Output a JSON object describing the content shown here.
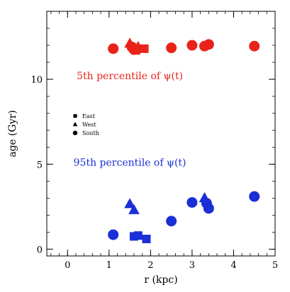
{
  "chart_data": {
    "type": "scatter",
    "xlabel": "r (kpc)",
    "ylabel": "age (Gyr)",
    "xlim": [
      -0.5,
      5.0
    ],
    "ylim": [
      -0.4,
      14.0
    ],
    "x_ticks": [
      0,
      1,
      2,
      3,
      4,
      5
    ],
    "y_ticks": [
      0,
      5,
      10
    ],
    "x_minor_step": 0.2,
    "y_minor_step": 1,
    "grid": false,
    "legend_position": "left",
    "legend": [
      {
        "label": "East",
        "marker": "square"
      },
      {
        "label": "West",
        "marker": "triangle"
      },
      {
        "label": "South",
        "marker": "circle"
      }
    ],
    "annotations": [
      {
        "text": "5th percentile of ψ(t)",
        "color": "#e8231a",
        "x": 1.5,
        "y": 10.0
      },
      {
        "text": "95th percentile of ψ(t)",
        "color": "#1a2fd6",
        "x": 1.5,
        "y": 4.9
      }
    ],
    "series": [
      {
        "name": "5th percentile of ψ(t)",
        "color": "#e8231a",
        "points": [
          {
            "x": 1.1,
            "y": 11.8,
            "marker": "circle"
          },
          {
            "x": 1.5,
            "y": 12.1,
            "marker": "triangle"
          },
          {
            "x": 1.55,
            "y": 11.9,
            "marker": "circle"
          },
          {
            "x": 1.6,
            "y": 11.75,
            "marker": "circle"
          },
          {
            "x": 1.65,
            "y": 11.7,
            "marker": "square"
          },
          {
            "x": 1.7,
            "y": 11.9,
            "marker": "triangle"
          },
          {
            "x": 1.85,
            "y": 11.8,
            "marker": "square"
          },
          {
            "x": 2.5,
            "y": 11.85,
            "marker": "circle"
          },
          {
            "x": 3.0,
            "y": 12.0,
            "marker": "circle"
          },
          {
            "x": 3.3,
            "y": 11.95,
            "marker": "circle"
          },
          {
            "x": 3.4,
            "y": 12.05,
            "marker": "circle"
          },
          {
            "x": 4.5,
            "y": 11.95,
            "marker": "circle"
          }
        ]
      },
      {
        "name": "95th percentile of ψ(t)",
        "color": "#1a2fd6",
        "points": [
          {
            "x": 1.1,
            "y": 0.85,
            "marker": "circle"
          },
          {
            "x": 1.5,
            "y": 2.65,
            "marker": "triangle"
          },
          {
            "x": 1.6,
            "y": 2.3,
            "marker": "triangle"
          },
          {
            "x": 1.6,
            "y": 0.75,
            "marker": "square"
          },
          {
            "x": 1.7,
            "y": 0.8,
            "marker": "square"
          },
          {
            "x": 1.9,
            "y": 0.6,
            "marker": "square"
          },
          {
            "x": 2.5,
            "y": 1.65,
            "marker": "circle"
          },
          {
            "x": 3.0,
            "y": 2.75,
            "marker": "circle"
          },
          {
            "x": 3.3,
            "y": 3.0,
            "marker": "triangle"
          },
          {
            "x": 3.35,
            "y": 2.7,
            "marker": "circle"
          },
          {
            "x": 3.4,
            "y": 2.4,
            "marker": "circle"
          },
          {
            "x": 4.5,
            "y": 3.1,
            "marker": "circle"
          }
        ]
      }
    ]
  }
}
